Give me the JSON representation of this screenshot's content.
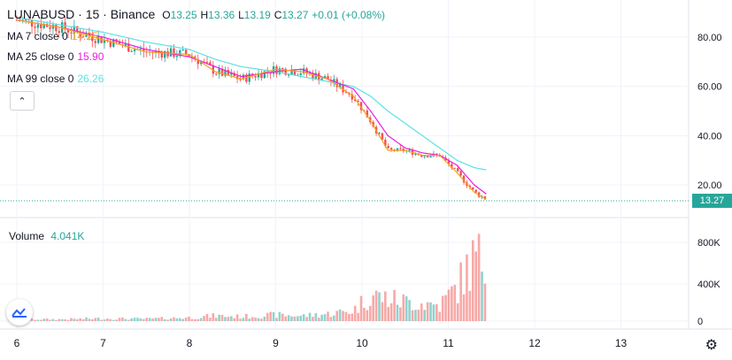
{
  "header": {
    "symbol": "LUNABUSD",
    "interval": "15",
    "exchange": "Binance",
    "o_label": "O",
    "o_value": "13.25",
    "h_label": "H",
    "h_value": "13.36",
    "l_label": "L",
    "l_value": "13.19",
    "c_label": "C",
    "c_value": "13.27",
    "change": "+0.01 (+0.08%)"
  },
  "indicators": [
    {
      "label": "MA 7 close 0",
      "value": "14.25",
      "color": "#f7a21b"
    },
    {
      "label": "MA 25 close 0",
      "value": "15.90",
      "color": "#e91ee0"
    },
    {
      "label": "MA 99 close 0",
      "value": "26.26",
      "color": "#5ce1e6"
    }
  ],
  "volume": {
    "label": "Volume",
    "value": "4.041K"
  },
  "price_axis": {
    "ticks": [
      "80.00",
      "60.00",
      "40.00",
      "20.00"
    ],
    "current_price": "13.27"
  },
  "volume_axis": {
    "ticks": [
      "800K",
      "400K",
      "0"
    ]
  },
  "time_axis": {
    "ticks": [
      "6",
      "7",
      "8",
      "9",
      "10",
      "11",
      "12",
      "13"
    ]
  },
  "colors": {
    "up": "#26a69a",
    "down": "#ef5350",
    "grid": "#f0f3fa"
  },
  "chart_data": {
    "type": "line",
    "title": "LUNABUSD · 15 · Binance",
    "xlabel": "",
    "ylabel": "",
    "x": [
      6,
      6.5,
      7,
      7.5,
      8,
      8.3,
      8.6,
      9,
      9.3,
      9.6,
      9.9,
      10.1,
      10.3,
      10.5,
      10.7,
      10.9,
      11.1,
      11.3,
      11.45
    ],
    "series": [
      {
        "name": "MA 99 close 0",
        "values": [
          88,
          85,
          82,
          78,
          75,
          71,
          68,
          66,
          64,
          62,
          60,
          56,
          50,
          45,
          40,
          35,
          30,
          27,
          26
        ]
      },
      {
        "name": "MA 25 close 0",
        "values": [
          87,
          84,
          80,
          75,
          72,
          68,
          64,
          66,
          67,
          63,
          59,
          50,
          40,
          35,
          33,
          32,
          28,
          20,
          16
        ]
      },
      {
        "name": "MA 7 close 0",
        "values": [
          87,
          84,
          79,
          74,
          73,
          66,
          63,
          67,
          66,
          63,
          56,
          46,
          34,
          34,
          32,
          32,
          25,
          17,
          14
        ]
      }
    ],
    "ylim": [
      10,
      90
    ],
    "volume_series": [
      20,
      20,
      30,
      25,
      40,
      60,
      50,
      70,
      60,
      80,
      120,
      300,
      250,
      220,
      200,
      180,
      380,
      700,
      650
    ]
  }
}
